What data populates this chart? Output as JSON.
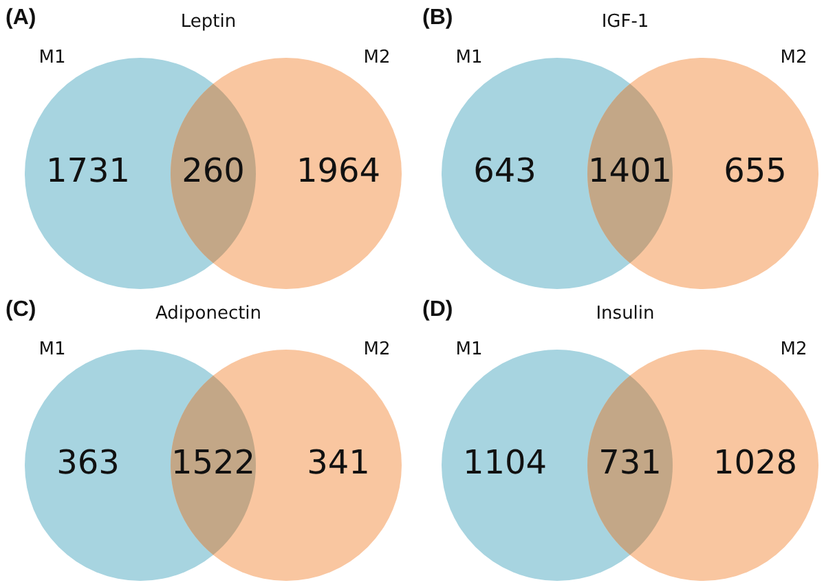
{
  "chart_data": [
    {
      "type": "other",
      "title": "Leptin",
      "categories": [
        "M1",
        null,
        "M2"
      ],
      "values": [
        1731,
        260,
        1964
      ],
      "data_labels": true,
      "colors": [
        "#a7d4e0",
        "#c3a787",
        "#f9c6a0"
      ],
      "annotations": [
        "(A)"
      ]
    },
    {
      "type": "other",
      "title": "IGF-1",
      "categories": [
        "M1",
        null,
        "M2"
      ],
      "values": [
        643,
        1401,
        655
      ],
      "data_labels": true,
      "colors": [
        "#a7d4e0",
        "#c3a787",
        "#f9c6a0"
      ],
      "annotations": [
        "(B)"
      ]
    },
    {
      "type": "other",
      "title": "Adiponectin",
      "categories": [
        "M1",
        null,
        "M2"
      ],
      "values": [
        363,
        1522,
        341
      ],
      "data_labels": true,
      "colors": [
        "#a7d4e0",
        "#c3a787",
        "#f9c6a0"
      ],
      "annotations": [
        "(C)"
      ]
    },
    {
      "type": "other",
      "title": "Insulin",
      "categories": [
        "M1",
        null,
        "M2"
      ],
      "values": [
        1104,
        731,
        1028
      ],
      "data_labels": true,
      "colors": [
        "#a7d4e0",
        "#c3a787",
        "#f9c6a0"
      ],
      "annotations": [
        "(D)"
      ]
    }
  ]
}
